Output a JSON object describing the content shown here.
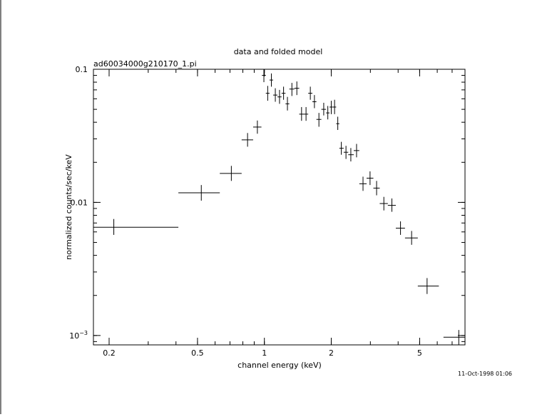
{
  "chart_data": {
    "type": "scatter",
    "title": "data and folded model",
    "subtitle": "ad60034000g210170_1.pi",
    "xlabel": "channel energy (keV)",
    "ylabel": "normalized counts/sec/keV",
    "timestamp": "11-Oct-1998 01:06",
    "x_scale": "log",
    "y_scale": "log",
    "xlim": [
      0.17,
      8.0
    ],
    "ylim": [
      0.00085,
      0.1
    ],
    "x_ticks": [
      {
        "value": 0.2,
        "label": "0.2"
      },
      {
        "value": 0.5,
        "label": "0.5"
      },
      {
        "value": 1,
        "label": "1"
      },
      {
        "value": 2,
        "label": "2"
      },
      {
        "value": 5,
        "label": "5"
      }
    ],
    "y_ticks": [
      {
        "value": 0.1,
        "label": "0.1"
      },
      {
        "value": 0.01,
        "label": "0.01"
      },
      {
        "value": 0.001,
        "label": "10",
        "exponent": "−3"
      }
    ],
    "grid": false,
    "series": [
      {
        "marker": "cross-error-bar",
        "color": "#000000",
        "points": [
          {
            "x": 0.21,
            "xlo": 0.17,
            "xhi": 0.41,
            "y": 0.0065,
            "ylo": 0.0057,
            "yhi": 0.0075
          },
          {
            "x": 0.52,
            "xlo": 0.41,
            "xhi": 0.63,
            "y": 0.0118,
            "ylo": 0.0103,
            "yhi": 0.0135
          },
          {
            "x": 0.71,
            "xlo": 0.63,
            "xhi": 0.79,
            "y": 0.0165,
            "ylo": 0.0145,
            "yhi": 0.0188
          },
          {
            "x": 0.84,
            "xlo": 0.79,
            "xhi": 0.89,
            "y": 0.0295,
            "ylo": 0.0262,
            "yhi": 0.0332
          },
          {
            "x": 0.93,
            "xlo": 0.89,
            "xhi": 0.97,
            "y": 0.0368,
            "ylo": 0.0328,
            "yhi": 0.0412
          },
          {
            "x": 0.995,
            "xlo": 0.975,
            "xhi": 1.015,
            "y": 0.09,
            "ylo": 0.08,
            "yhi": 0.1
          },
          {
            "x": 1.035,
            "xlo": 1.015,
            "xhi": 1.055,
            "y": 0.066,
            "ylo": 0.058,
            "yhi": 0.075
          },
          {
            "x": 1.075,
            "xlo": 1.055,
            "xhi": 1.095,
            "y": 0.083,
            "ylo": 0.074,
            "yhi": 0.093
          },
          {
            "x": 1.12,
            "xlo": 1.095,
            "xhi": 1.145,
            "y": 0.064,
            "ylo": 0.057,
            "yhi": 0.072
          },
          {
            "x": 1.17,
            "xlo": 1.145,
            "xhi": 1.195,
            "y": 0.062,
            "ylo": 0.055,
            "yhi": 0.07
          },
          {
            "x": 1.22,
            "xlo": 1.195,
            "xhi": 1.245,
            "y": 0.066,
            "ylo": 0.059,
            "yhi": 0.074
          },
          {
            "x": 1.27,
            "xlo": 1.245,
            "xhi": 1.295,
            "y": 0.055,
            "ylo": 0.049,
            "yhi": 0.062
          },
          {
            "x": 1.33,
            "xlo": 1.295,
            "xhi": 1.365,
            "y": 0.071,
            "ylo": 0.063,
            "yhi": 0.079
          },
          {
            "x": 1.4,
            "xlo": 1.365,
            "xhi": 1.435,
            "y": 0.072,
            "ylo": 0.064,
            "yhi": 0.081
          },
          {
            "x": 1.47,
            "xlo": 1.435,
            "xhi": 1.505,
            "y": 0.046,
            "ylo": 0.041,
            "yhi": 0.052
          },
          {
            "x": 1.54,
            "xlo": 1.505,
            "xhi": 1.575,
            "y": 0.046,
            "ylo": 0.041,
            "yhi": 0.052
          },
          {
            "x": 1.61,
            "xlo": 1.575,
            "xhi": 1.645,
            "y": 0.066,
            "ylo": 0.059,
            "yhi": 0.074
          },
          {
            "x": 1.68,
            "xlo": 1.645,
            "xhi": 1.715,
            "y": 0.057,
            "ylo": 0.051,
            "yhi": 0.064
          },
          {
            "x": 1.76,
            "xlo": 1.715,
            "xhi": 1.805,
            "y": 0.042,
            "ylo": 0.037,
            "yhi": 0.047
          },
          {
            "x": 1.85,
            "xlo": 1.805,
            "xhi": 1.895,
            "y": 0.05,
            "ylo": 0.045,
            "yhi": 0.056
          },
          {
            "x": 1.93,
            "xlo": 1.895,
            "xhi": 1.965,
            "y": 0.047,
            "ylo": 0.042,
            "yhi": 0.053
          },
          {
            "x": 2.0,
            "xlo": 1.965,
            "xhi": 2.035,
            "y": 0.052,
            "ylo": 0.046,
            "yhi": 0.058
          },
          {
            "x": 2.07,
            "xlo": 2.035,
            "xhi": 2.105,
            "y": 0.052,
            "ylo": 0.046,
            "yhi": 0.059
          },
          {
            "x": 2.14,
            "xlo": 2.105,
            "xhi": 2.175,
            "y": 0.039,
            "ylo": 0.035,
            "yhi": 0.044
          },
          {
            "x": 2.22,
            "xlo": 2.175,
            "xhi": 2.275,
            "y": 0.0255,
            "ylo": 0.0228,
            "yhi": 0.0285
          },
          {
            "x": 2.33,
            "xlo": 2.275,
            "xhi": 2.385,
            "y": 0.0238,
            "ylo": 0.0212,
            "yhi": 0.0266
          },
          {
            "x": 2.45,
            "xlo": 2.385,
            "xhi": 2.525,
            "y": 0.0228,
            "ylo": 0.0203,
            "yhi": 0.0256
          },
          {
            "x": 2.6,
            "xlo": 2.525,
            "xhi": 2.675,
            "y": 0.0245,
            "ylo": 0.0218,
            "yhi": 0.0275
          },
          {
            "x": 2.78,
            "xlo": 2.675,
            "xhi": 2.885,
            "y": 0.0138,
            "ylo": 0.0122,
            "yhi": 0.0156
          },
          {
            "x": 2.99,
            "xlo": 2.885,
            "xhi": 3.095,
            "y": 0.0152,
            "ylo": 0.0135,
            "yhi": 0.0171
          },
          {
            "x": 3.2,
            "xlo": 3.095,
            "xhi": 3.305,
            "y": 0.0128,
            "ylo": 0.0113,
            "yhi": 0.0145
          },
          {
            "x": 3.45,
            "xlo": 3.305,
            "xhi": 3.595,
            "y": 0.0098,
            "ylo": 0.0087,
            "yhi": 0.011
          },
          {
            "x": 3.75,
            "xlo": 3.595,
            "xhi": 3.905,
            "y": 0.0095,
            "ylo": 0.0085,
            "yhi": 0.0107
          },
          {
            "x": 4.1,
            "xlo": 3.905,
            "xhi": 4.295,
            "y": 0.0064,
            "ylo": 0.0057,
            "yhi": 0.0072
          },
          {
            "x": 4.6,
            "xlo": 4.295,
            "xhi": 4.905,
            "y": 0.0054,
            "ylo": 0.0048,
            "yhi": 0.0061
          },
          {
            "x": 5.4,
            "xlo": 4.905,
            "xhi": 6.1,
            "y": 0.00235,
            "ylo": 0.00205,
            "yhi": 0.0027
          },
          {
            "x": 7.5,
            "xlo": 6.4,
            "xhi": 8.0,
            "y": 0.00097,
            "ylo": 0.00085,
            "yhi": 0.0011
          }
        ]
      }
    ]
  }
}
